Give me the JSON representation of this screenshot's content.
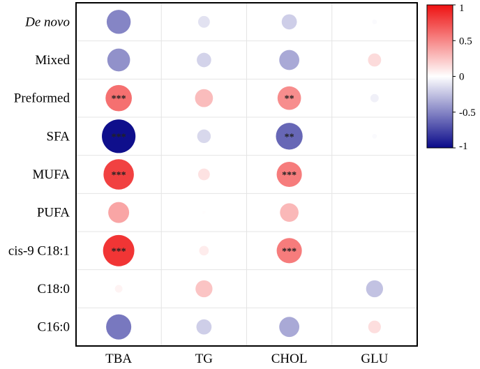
{
  "chart_data": {
    "type": "heatmap",
    "style": "circle-correlation-plot",
    "rows": [
      {
        "label": "De novo",
        "italic": true
      },
      {
        "label": "Mixed",
        "italic": false
      },
      {
        "label": "Preformed",
        "italic": false
      },
      {
        "label": "SFA",
        "italic": false
      },
      {
        "label": "MUFA",
        "italic": false
      },
      {
        "label": "PUFA",
        "italic": false
      },
      {
        "label": "cis-9 C18:1",
        "italic": false
      },
      {
        "label": "C18:0",
        "italic": false
      },
      {
        "label": "C16:0",
        "italic": false
      }
    ],
    "columns": [
      "TBA",
      "TG",
      "CHOL",
      "GLU"
    ],
    "values": [
      [
        -0.5,
        -0.12,
        -0.2,
        -0.02
      ],
      [
        -0.45,
        -0.18,
        -0.35,
        0.15
      ],
      [
        0.6,
        0.28,
        0.48,
        -0.06
      ],
      [
        -0.98,
        -0.16,
        -0.62,
        -0.02
      ],
      [
        0.8,
        0.12,
        0.55,
        0.0
      ],
      [
        0.38,
        0.01,
        0.3,
        0.0
      ],
      [
        0.85,
        0.08,
        0.55,
        0.0
      ],
      [
        0.05,
        0.25,
        0.0,
        -0.25
      ],
      [
        -0.55,
        -0.2,
        -0.35,
        0.14
      ]
    ],
    "significance": [
      [
        "",
        "",
        "",
        ""
      ],
      [
        "",
        "",
        "",
        ""
      ],
      [
        "***",
        "",
        "**",
        ""
      ],
      [
        "***",
        "",
        "**",
        ""
      ],
      [
        "***",
        "",
        "***",
        ""
      ],
      [
        "",
        "",
        "",
        ""
      ],
      [
        "***",
        "",
        "***",
        ""
      ],
      [
        "",
        "",
        "",
        ""
      ],
      [
        "",
        "",
        "",
        ""
      ]
    ],
    "colorbar": {
      "range": [
        -1,
        1
      ],
      "ticks": [
        {
          "value": 1,
          "label": "1"
        },
        {
          "value": 0.5,
          "label": "0.5"
        },
        {
          "value": 0,
          "label": "0"
        },
        {
          "value": -0.5,
          "label": "-0.5"
        },
        {
          "value": -1,
          "label": "-1"
        }
      ],
      "colors": {
        "negative": "#0a0a8a",
        "neutral": "#ffffff",
        "positive": "#ee1111"
      }
    },
    "grid": true,
    "title": "",
    "xlabel": "",
    "ylabel": ""
  }
}
